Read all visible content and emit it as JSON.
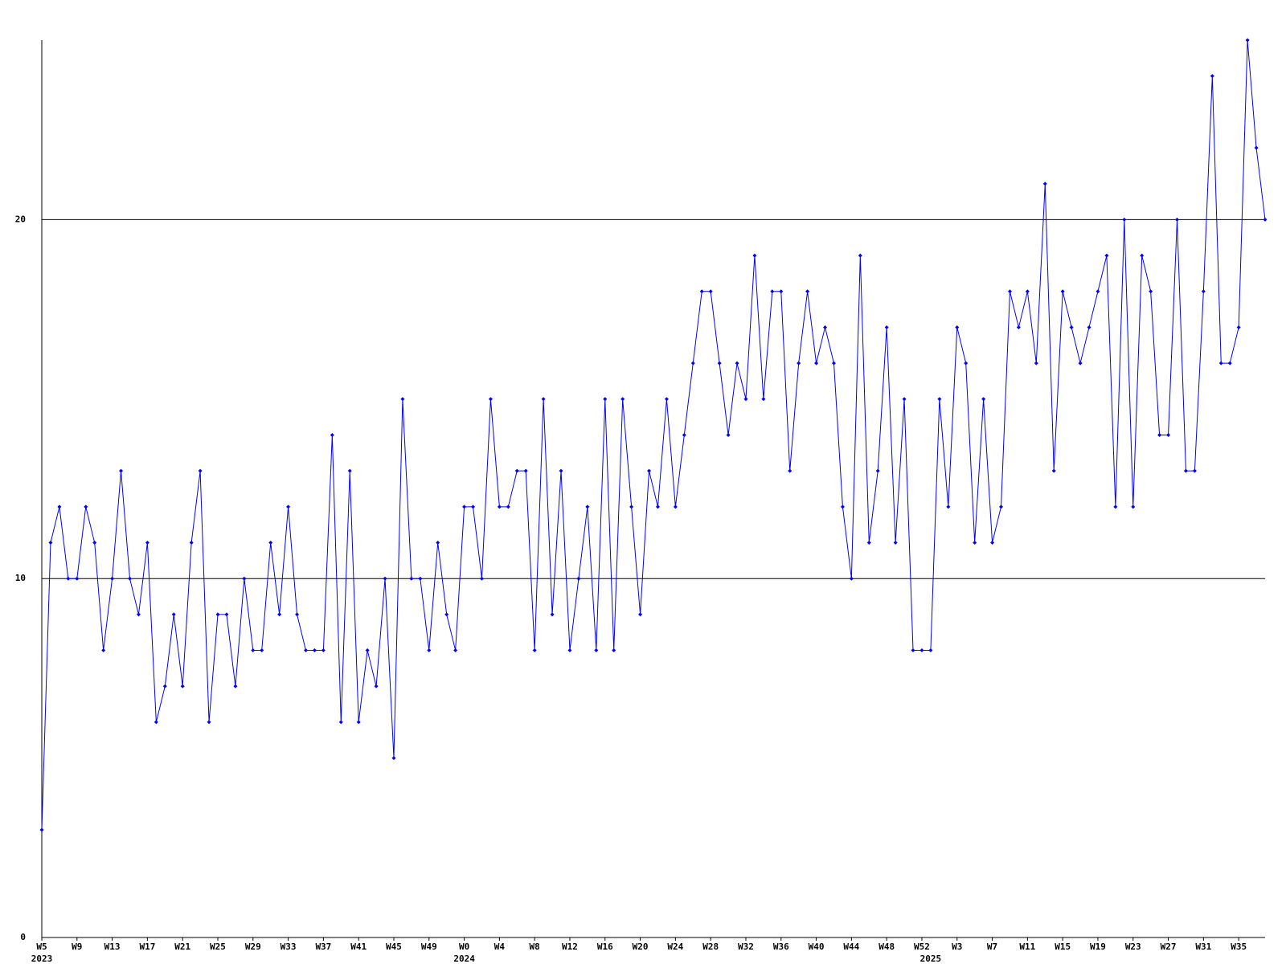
{
  "chart_data": {
    "type": "line",
    "categories": [
      "W5",
      null,
      null,
      null,
      "W9",
      null,
      null,
      null,
      "W13",
      null,
      null,
      null,
      "W17",
      null,
      null,
      null,
      "W21",
      null,
      null,
      null,
      "W25",
      null,
      null,
      null,
      "W29",
      null,
      null,
      null,
      "W33",
      null,
      null,
      null,
      "W37",
      null,
      null,
      null,
      "W41",
      null,
      null,
      null,
      "W45",
      null,
      null,
      null,
      "W49",
      null,
      null,
      null,
      "W0",
      null,
      null,
      null,
      "W4",
      null,
      null,
      null,
      "W8",
      null,
      null,
      null,
      "W12",
      null,
      null,
      null,
      "W16",
      null,
      null,
      null,
      "W20",
      null,
      null,
      null,
      "W24",
      null,
      null,
      null,
      "W28",
      null,
      null,
      null,
      "W32",
      null,
      null,
      null,
      "W36",
      null,
      null,
      null,
      "W40",
      null,
      null,
      null,
      "W44",
      null,
      null,
      null,
      "W48",
      null,
      null,
      null,
      "W52",
      null,
      null,
      null,
      "W3",
      null,
      null,
      null,
      "W7",
      null,
      null,
      null,
      "W11",
      null,
      null,
      null,
      "W15",
      null,
      null,
      null,
      "W19",
      null,
      null,
      null,
      "W23",
      null,
      null,
      null,
      "W27",
      null,
      null,
      null,
      "W31",
      null,
      null,
      null,
      "W35",
      null,
      null,
      null
    ],
    "category_years": [
      "2023",
      null,
      null,
      null,
      null,
      null,
      null,
      null,
      null,
      null,
      null,
      null,
      null,
      null,
      null,
      null,
      null,
      null,
      null,
      null,
      null,
      null,
      null,
      null,
      null,
      null,
      null,
      null,
      null,
      null,
      null,
      null,
      null,
      null,
      null,
      null,
      null,
      null,
      null,
      null,
      null,
      null,
      null,
      null,
      null,
      null,
      null,
      null,
      "2024",
      null,
      null,
      null,
      null,
      null,
      null,
      null,
      null,
      null,
      null,
      null,
      null,
      null,
      null,
      null,
      null,
      null,
      null,
      null,
      null,
      null,
      null,
      null,
      null,
      null,
      null,
      null,
      null,
      null,
      null,
      null,
      null,
      null,
      null,
      null,
      null,
      null,
      null,
      null,
      null,
      null,
      null,
      null,
      null,
      null,
      null,
      null,
      null,
      null,
      null,
      null,
      null,
      "2025",
      null,
      null,
      null,
      null,
      null,
      null,
      null,
      null,
      null,
      null,
      null,
      null,
      null,
      null,
      null,
      null,
      null,
      null,
      null,
      null,
      null,
      null,
      null,
      null,
      null,
      null,
      null,
      null,
      null,
      null,
      null,
      null,
      null,
      null,
      null,
      null,
      null,
      null
    ],
    "series": [
      {
        "color": "#0000ff",
        "values": [
          3,
          11,
          12,
          10,
          10,
          12,
          11,
          8,
          10,
          13,
          10,
          9,
          11,
          6,
          7,
          9,
          7,
          11,
          13,
          6,
          9,
          9,
          7,
          10,
          8,
          8,
          11,
          9,
          12,
          9,
          8,
          8,
          8,
          14,
          6,
          13,
          6,
          8,
          7,
          10,
          5,
          15,
          10,
          10,
          8,
          11,
          9,
          8,
          12,
          12,
          10,
          15,
          12,
          12,
          13,
          13,
          8,
          15,
          9,
          13,
          8,
          10,
          12,
          8,
          15,
          8,
          15,
          12,
          9,
          13,
          12,
          15,
          12,
          14,
          16,
          18,
          18,
          16,
          14,
          16,
          15,
          19,
          15,
          18,
          18,
          13,
          16,
          18,
          16,
          17,
          16,
          12,
          10,
          19,
          11,
          13,
          17,
          11,
          15,
          8,
          8,
          8,
          15,
          12,
          17,
          16,
          11,
          15,
          11,
          12,
          18,
          17,
          18,
          16,
          21,
          13,
          18,
          17,
          16,
          17,
          18,
          19,
          12,
          20,
          12,
          19,
          18,
          14,
          14,
          20,
          13,
          13,
          18,
          24,
          16,
          16,
          17,
          25,
          22,
          20
        ]
      }
    ],
    "ylim": [
      0,
      25
    ],
    "yticks": [
      0,
      10,
      20
    ],
    "grid": true
  }
}
